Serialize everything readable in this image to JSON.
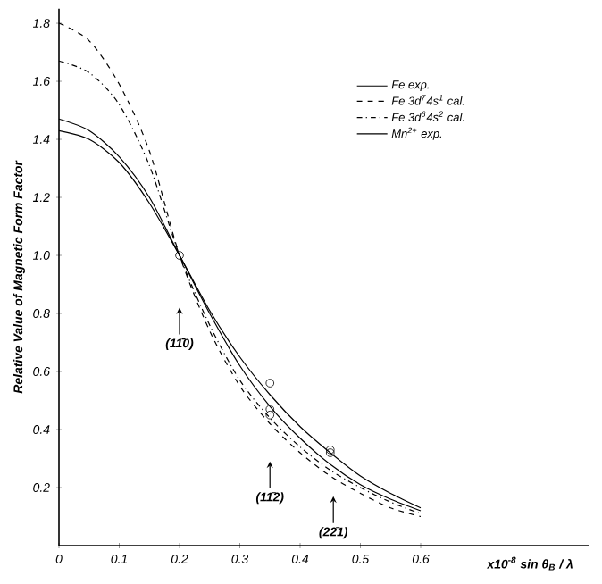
{
  "chart_data": {
    "type": "line",
    "ylabel": "Relative Value of Magnetic Form Factor",
    "xlabel": "x10$^{-8}$ sin θ$_{B}$ / λ",
    "x": [
      0,
      0.05,
      0.1,
      0.15,
      0.2,
      0.25,
      0.3,
      0.35,
      0.4,
      0.45,
      0.5,
      0.55,
      0.6
    ],
    "series": [
      {
        "name": "Fe   exp.",
        "color": "#000000",
        "line_style": "solid",
        "values": [
          1.43,
          1.4,
          1.32,
          1.18,
          1.0,
          0.81,
          0.65,
          0.52,
          0.41,
          0.32,
          0.24,
          0.18,
          0.13
        ]
      },
      {
        "name": "Fe   3d$^{7}$4s$^{1}$ cal.",
        "color": "#000000",
        "line_style": "dashed",
        "values": [
          1.8,
          1.74,
          1.59,
          1.36,
          1.0,
          0.74,
          0.55,
          0.42,
          0.32,
          0.24,
          0.18,
          0.13,
          0.1
        ]
      },
      {
        "name": "Fe   3d$^{6}$4s$^{2}$ cal.",
        "color": "#000000",
        "line_style": "dotted",
        "values": [
          1.67,
          1.63,
          1.52,
          1.31,
          1.0,
          0.76,
          0.57,
          0.44,
          0.34,
          0.26,
          0.2,
          0.15,
          0.11
        ]
      },
      {
        "name": "Mn$^{2+}$ exp.",
        "color": "#000000",
        "line_style": "solid",
        "values": [
          1.47,
          1.43,
          1.34,
          1.2,
          1.0,
          0.8,
          0.62,
          0.48,
          0.37,
          0.28,
          0.21,
          0.16,
          0.12
        ]
      },
      {
        "type": "scatter",
        "color": "#000000",
        "marker": "circle",
        "x": [
          0.2,
          0.35,
          0.35,
          0.35,
          0.45,
          0.45
        ],
        "values": [
          1.0,
          0.56,
          0.47,
          0.45,
          0.33,
          0.32
        ]
      }
    ],
    "xlim": [
      0,
      0.88
    ],
    "ylim": [
      0,
      1.85
    ],
    "xticks": [
      0,
      {
        "value": 0.1,
        "label": "0.1"
      },
      {
        "value": 0.2,
        "label": "0.2"
      },
      {
        "value": 0.3,
        "label": "0.3"
      },
      {
        "value": 0.4,
        "label": "0.4"
      },
      {
        "value": 0.5,
        "label": "0.5"
      },
      {
        "value": 0.6,
        "label": "0.6"
      }
    ],
    "yticks": [
      {
        "value": 0.2,
        "label": "0.2"
      },
      {
        "value": 0.4,
        "label": "0.4"
      },
      {
        "value": 0.6,
        "label": "0.6"
      },
      {
        "value": 0.8,
        "label": "0.8"
      },
      {
        "value": 1.0,
        "label": "1.0"
      },
      {
        "value": 1.2,
        "label": "1.2"
      },
      {
        "value": 1.4,
        "label": "1.4"
      },
      {
        "value": 1.6,
        "label": "1.6"
      },
      {
        "value": 1.8,
        "label": "1.8"
      }
    ],
    "annotations": [
      {
        "text": "(11̄0)",
        "x": 0.2,
        "y": 0.82
      },
      {
        "text": "(11̄2)",
        "x": 0.35,
        "y": 0.29
      },
      {
        "text": "(22̄1)",
        "x": 0.455,
        "y": 0.17
      }
    ],
    "grid": false,
    "legend": "top right"
  }
}
